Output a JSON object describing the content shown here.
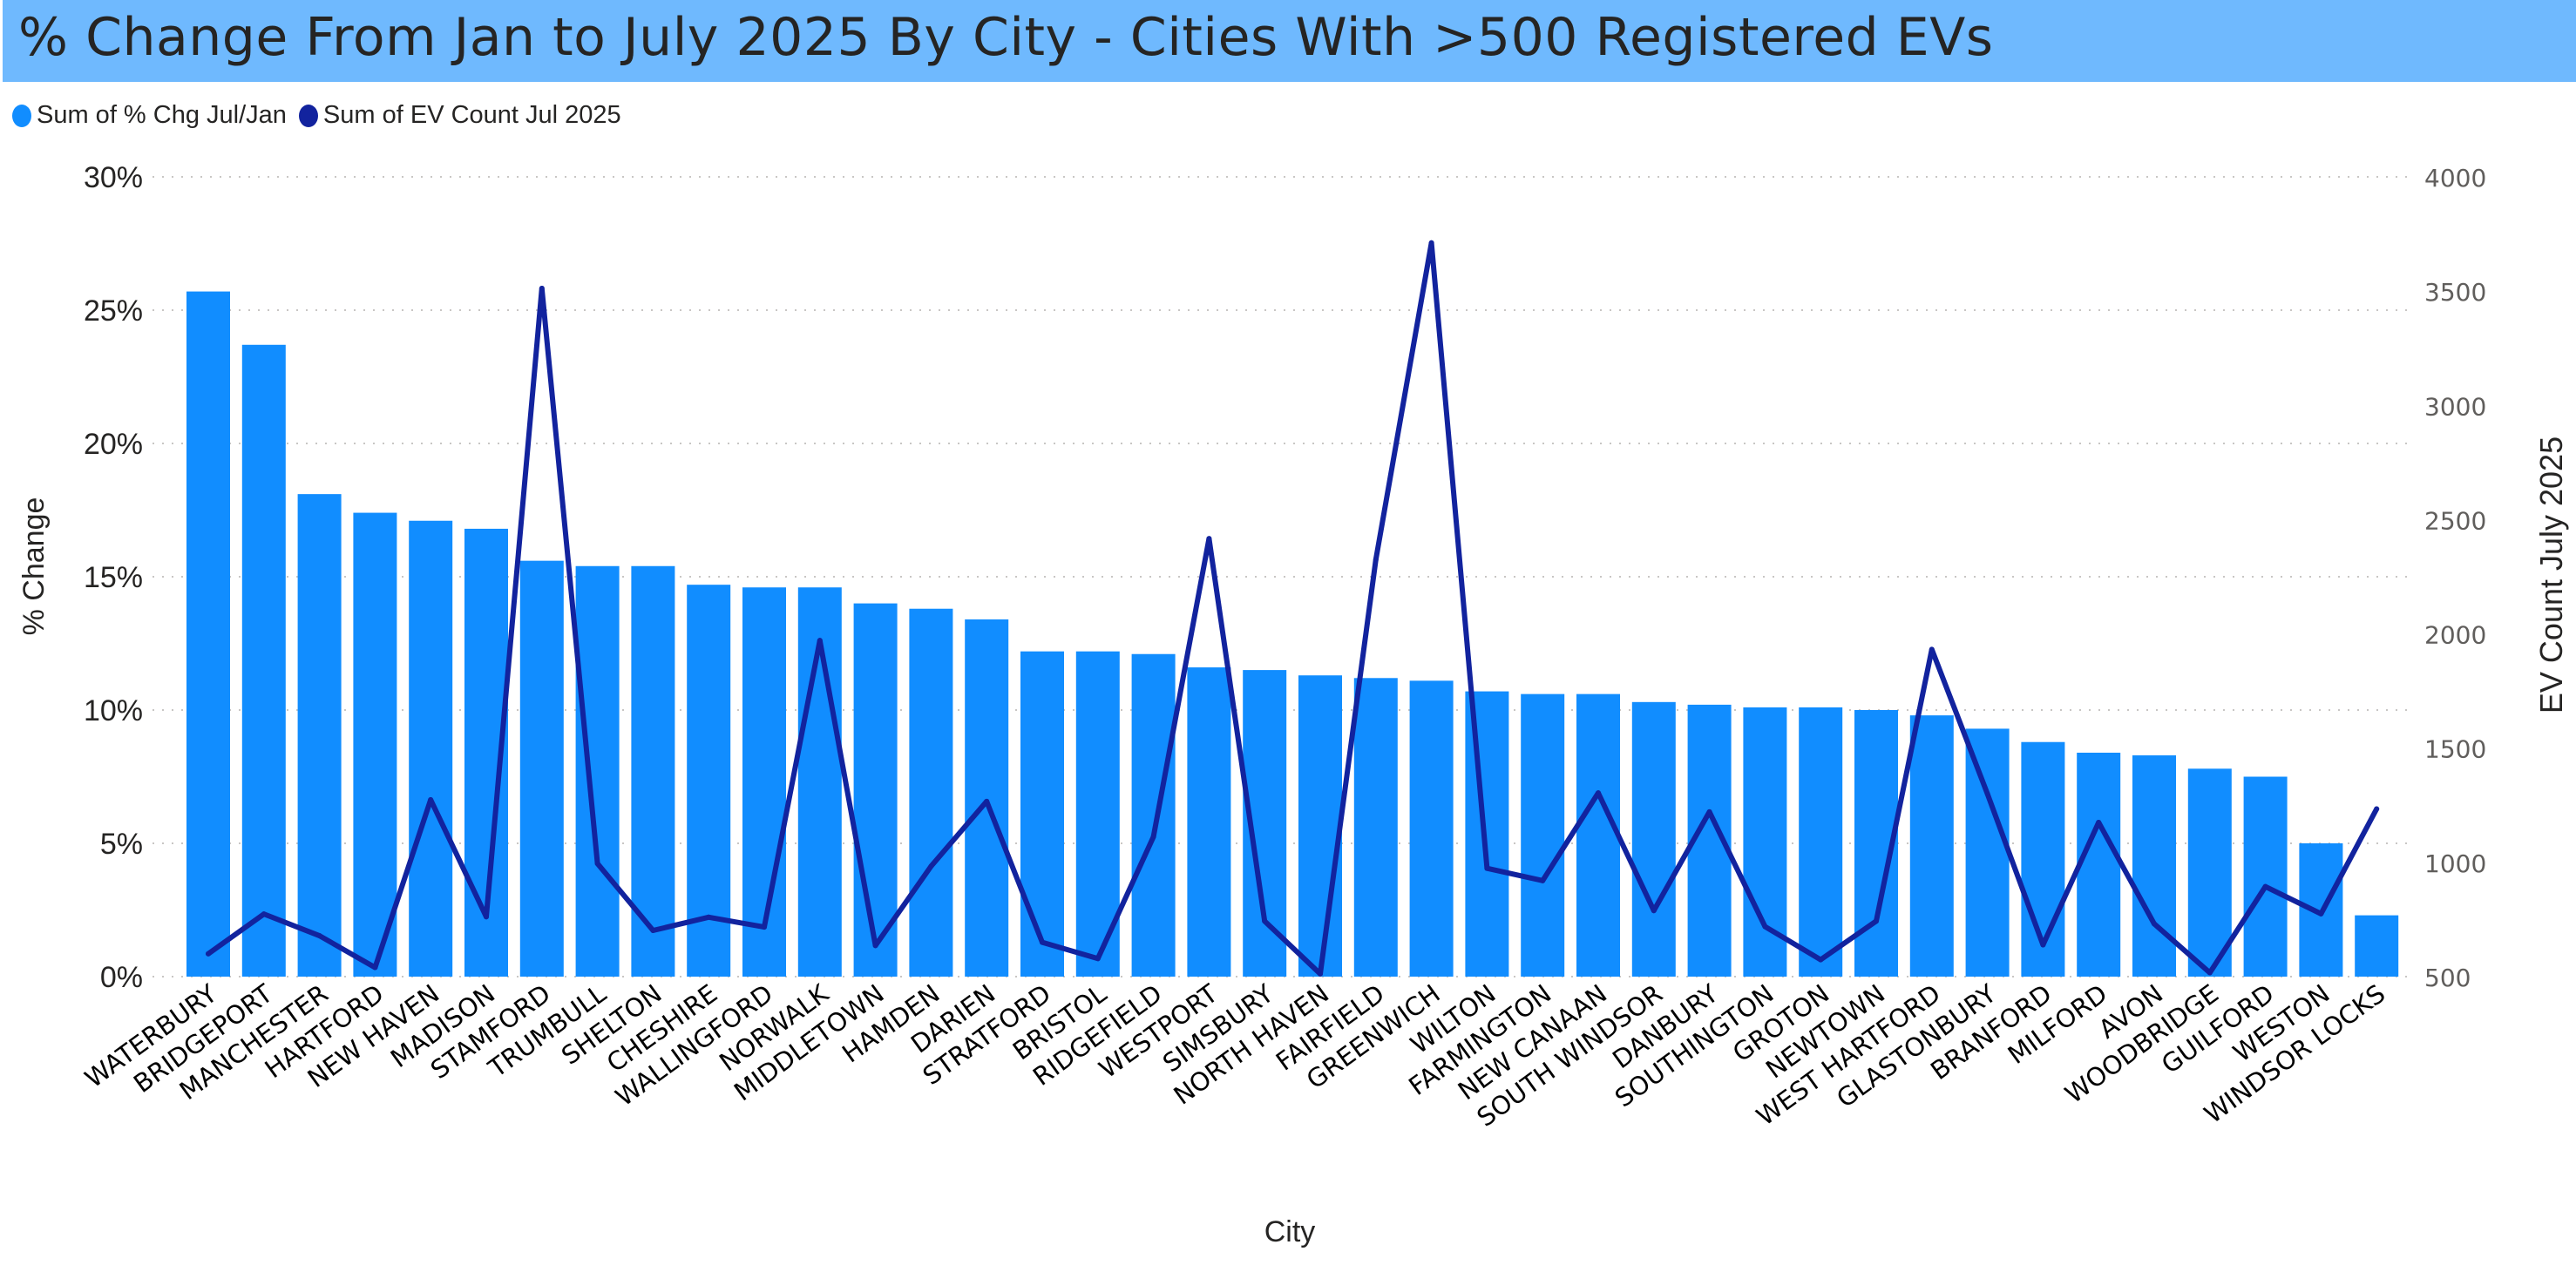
{
  "title": "% Change From Jan to July 2025 By City - Cities With >500 Registered EVs",
  "colors": {
    "title_bar": "#6fb9fe",
    "bars": "#118dff",
    "line": "#12239e"
  },
  "chart_data": {
    "type": "bar+line",
    "title": "% Change From Jan to July 2025 By City - Cities With >500 Registered EVs",
    "xlabel": "City",
    "ylabel": "% Change",
    "y2label": "EV Count July 2025",
    "ylim": [
      0,
      30
    ],
    "y2lim": [
      500,
      4000
    ],
    "yticks": [
      "0%",
      "5%",
      "10%",
      "15%",
      "20%",
      "25%",
      "30%"
    ],
    "y2ticks": [
      "500",
      "1000",
      "1500",
      "2000",
      "2500",
      "3000",
      "3500",
      "4000"
    ],
    "grid": true,
    "legend_position": "top-left",
    "categories": [
      "WATERBURY",
      "BRIDGEPORT",
      "MANCHESTER",
      "HARTFORD",
      "NEW HAVEN",
      "MADISON",
      "STAMFORD",
      "TRUMBULL",
      "SHELTON",
      "CHESHIRE",
      "WALLINGFORD",
      "NORWALK",
      "MIDDLETOWN",
      "HAMDEN",
      "DARIEN",
      "STRATFORD",
      "BRISTOL",
      "RIDGEFIELD",
      "WESTPORT",
      "SIMSBURY",
      "NORTH HAVEN",
      "FAIRFIELD",
      "GREENWICH",
      "WILTON",
      "FARMINGTON",
      "NEW CANAAN",
      "SOUTH WINDSOR",
      "DANBURY",
      "SOUTHINGTON",
      "GROTON",
      "NEWTOWN",
      "WEST HARTFORD",
      "GLASTONBURY",
      "BRANFORD",
      "MILFORD",
      "AVON",
      "WOODBRIDGE",
      "GUILFORD",
      "WESTON",
      "WINDSOR LOCKS"
    ],
    "series": [
      {
        "name": "Sum of % Chg Jul/Jan",
        "type": "bar",
        "axis": "left",
        "values": [
          25.7,
          23.7,
          18.1,
          17.4,
          17.1,
          16.8,
          15.6,
          15.4,
          15.4,
          14.7,
          14.6,
          14.6,
          14.0,
          13.8,
          13.4,
          12.2,
          12.2,
          12.1,
          11.6,
          11.5,
          11.3,
          11.2,
          11.1,
          10.7,
          10.6,
          10.6,
          10.3,
          10.2,
          10.1,
          10.1,
          10.0,
          9.8,
          9.3,
          8.8,
          8.4,
          8.3,
          7.8,
          7.5,
          5.0,
          2.3
        ]
      },
      {
        "name": "Sum of EV Count Jul 2025",
        "type": "line",
        "axis": "right",
        "values": [
          600,
          774,
          679,
          540,
          1274,
          762,
          3512,
          995,
          702,
          760,
          717,
          1971,
          636,
          983,
          1267,
          650,
          579,
          1112,
          2417,
          743,
          512,
          2325,
          3711,
          974,
          920,
          1304,
          789,
          1221,
          719,
          574,
          743,
          1932,
          1300,
          639,
          1175,
          731,
          517,
          894,
          775,
          1234
        ]
      }
    ]
  }
}
